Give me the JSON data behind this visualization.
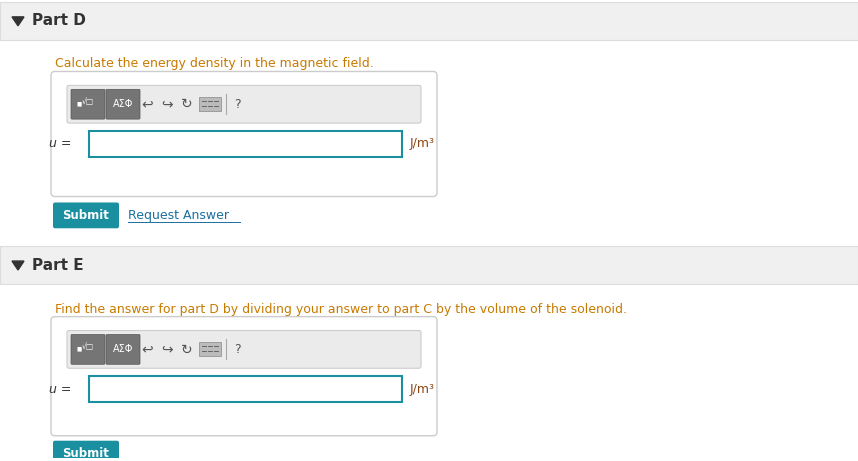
{
  "bg_color": "#f5f5f5",
  "white": "#ffffff",
  "part_d_label": "Part D",
  "part_e_label": "Part E",
  "part_d_instruction": "Calculate the energy density in the magnetic field.",
  "part_e_instruction": "Find the answer for part D by dividing your answer to part C by the volume of the solenoid.",
  "instruction_color": "#c87a00",
  "u_label": "u =",
  "unit_label": "J/m³",
  "unit_color": "#8b4513",
  "submit_label": "Submit",
  "submit_bg": "#1a8fa0",
  "submit_text_color": "#ffffff",
  "request_label": "Request Answer",
  "request_color": "#1a6fa0",
  "input_border_color": "#1a8fa0",
  "toolbar_bg": "#757575",
  "header_bg": "#f0f0f0",
  "header_border": "#dddddd",
  "dark_text": "#333333",
  "triangle_color": "#333333"
}
